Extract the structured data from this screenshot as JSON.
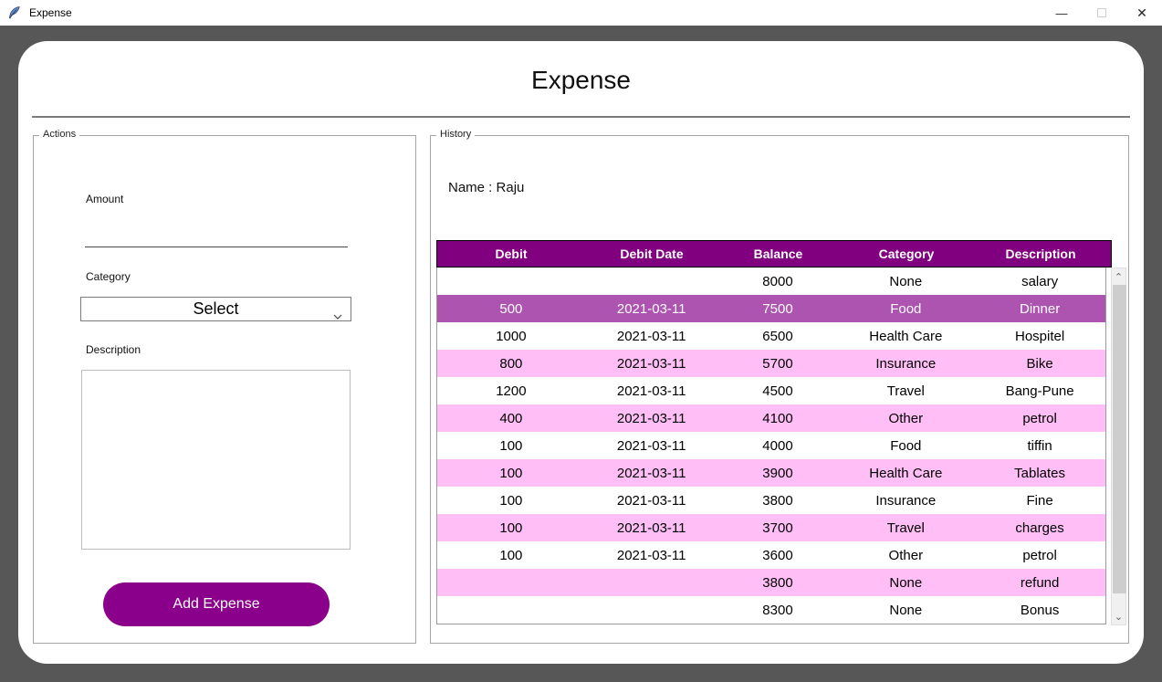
{
  "window": {
    "title": "Expense",
    "controls": {
      "minimize": "—",
      "close": "✕"
    }
  },
  "page": {
    "title": "Expense"
  },
  "actions": {
    "legend": "Actions",
    "amount_label": "Amount",
    "amount_value": "",
    "category_label": "Category",
    "category_selected": "Select",
    "description_label": "Description",
    "description_value": "",
    "add_button_label": "Add Expense"
  },
  "history": {
    "legend": "History",
    "name_text": "Name : Raju",
    "table": {
      "headers": [
        "Debit",
        "Debit Date",
        "Balance",
        "Category",
        "Description"
      ],
      "rows": [
        {
          "style": "white",
          "cells": [
            "",
            "",
            "8000",
            "None",
            "salary"
          ]
        },
        {
          "style": "selected",
          "cells": [
            "500",
            "2021-03-11",
            "7500",
            "Food",
            "Dinner"
          ]
        },
        {
          "style": "white",
          "cells": [
            "1000",
            "2021-03-11",
            "6500",
            "Health Care",
            "Hospitel"
          ]
        },
        {
          "style": "pink",
          "cells": [
            "800",
            "2021-03-11",
            "5700",
            "Insurance",
            "Bike"
          ]
        },
        {
          "style": "white",
          "cells": [
            "1200",
            "2021-03-11",
            "4500",
            "Travel",
            "Bang-Pune"
          ]
        },
        {
          "style": "pink",
          "cells": [
            "400",
            "2021-03-11",
            "4100",
            "Other",
            "petrol"
          ]
        },
        {
          "style": "white",
          "cells": [
            "100",
            "2021-03-11",
            "4000",
            "Food",
            "tiffin"
          ]
        },
        {
          "style": "pink",
          "cells": [
            "100",
            "2021-03-11",
            "3900",
            "Health Care",
            "Tablates"
          ]
        },
        {
          "style": "white",
          "cells": [
            "100",
            "2021-03-11",
            "3800",
            "Insurance",
            "Fine"
          ]
        },
        {
          "style": "pink",
          "cells": [
            "100",
            "2021-03-11",
            "3700",
            "Travel",
            "charges"
          ]
        },
        {
          "style": "white",
          "cells": [
            "100",
            "2021-03-11",
            "3600",
            "Other",
            "petrol"
          ]
        },
        {
          "style": "pink",
          "cells": [
            "",
            "",
            "3800",
            "None",
            "refund"
          ]
        },
        {
          "style": "white",
          "cells": [
            "",
            "",
            "8300",
            "None",
            "Bonus"
          ]
        }
      ]
    },
    "scrollbar": {
      "up": "⌃",
      "down": "⌄"
    }
  },
  "colors": {
    "window_background": "#575757",
    "card_background": "#ffffff",
    "table_header_bg": "#800080",
    "row_selected_bg": "#AC54B0",
    "row_pink_bg": "#FFBFF6",
    "add_button_bg": "#8B008B"
  }
}
